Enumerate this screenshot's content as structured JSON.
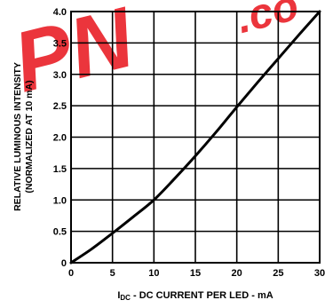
{
  "chart_data": {
    "type": "line",
    "title": "",
    "xlabel": "I",
    "xlabel_subscript": "DC",
    "xlabel_rest": " - DC CURRENT PER LED - mA",
    "ylabel_line1": "RELATIVE LUMINOUS INTENSITY",
    "ylabel_line2": "(NORMALIZED AT 10 mA)",
    "xlim": [
      0,
      30
    ],
    "ylim": [
      0,
      4.0
    ],
    "x_ticks": [
      "0",
      "5",
      "10",
      "15",
      "20",
      "25",
      "30"
    ],
    "y_ticks": [
      "0",
      "0.5",
      "1.0",
      "1.5",
      "2.0",
      "2.5",
      "3.0",
      "3.5",
      "4.0"
    ],
    "x_tick_values": [
      0,
      5,
      10,
      15,
      20,
      25,
      30
    ],
    "y_tick_values": [
      0,
      0.5,
      1.0,
      1.5,
      2.0,
      2.5,
      3.0,
      3.5,
      4.0
    ],
    "grid": true,
    "series": [
      {
        "x": [
          0,
          2.5,
          5,
          7.5,
          10,
          12.5,
          15,
          17.5,
          20,
          22.5,
          25,
          27.5,
          30
        ],
        "y": [
          0,
          0.22,
          0.47,
          0.73,
          1.0,
          1.34,
          1.7,
          2.08,
          2.48,
          2.87,
          3.25,
          3.63,
          4.0
        ]
      }
    ],
    "colors": {
      "line": "#000000",
      "grid": "#000000",
      "watermark": "#e8121b"
    }
  },
  "watermark": {
    "text": "PN",
    "text_small": ".co"
  }
}
